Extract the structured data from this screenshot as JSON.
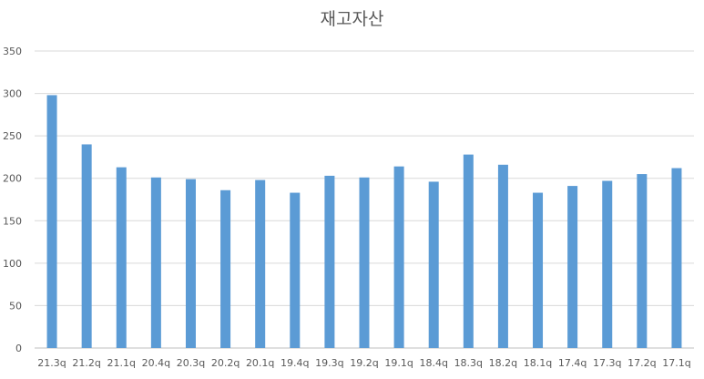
{
  "chart_data": {
    "type": "bar",
    "title": "재고자산",
    "xlabel": "",
    "ylabel": "",
    "ylim": [
      0,
      350
    ],
    "yticks": [
      0,
      50,
      100,
      150,
      200,
      250,
      300,
      350
    ],
    "grid": true,
    "legend": "none",
    "bar_color": "#5b9bd5",
    "categories": [
      "21.3q",
      "21.2q",
      "21.1q",
      "20.4q",
      "20.3q",
      "20.2q",
      "20.1q",
      "19.4q",
      "19.3q",
      "19.2q",
      "19.1q",
      "18.4q",
      "18.3q",
      "18.2q",
      "18.1q",
      "17.4q",
      "17.3q",
      "17.2q",
      "17.1q"
    ],
    "values": [
      298,
      240,
      213,
      201,
      199,
      186,
      198,
      183,
      203,
      201,
      214,
      196,
      228,
      216,
      183,
      191,
      197,
      205,
      212
    ]
  }
}
